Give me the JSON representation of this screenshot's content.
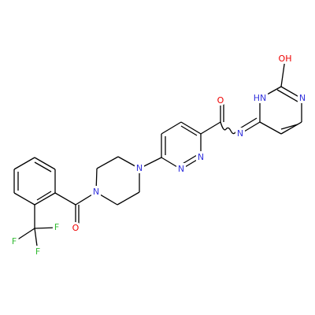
{
  "atoms": [
    {
      "label": "OH"
    },
    {
      "label": "HN"
    },
    {
      "label": "N"
    },
    {
      "label": "N"
    },
    {
      "label": "O"
    },
    {
      "label": "N"
    },
    {
      "label": "N"
    },
    {
      "label": "N"
    },
    {
      "label": "N"
    },
    {
      "label": "O"
    },
    {
      "label": "F"
    },
    {
      "label": "F"
    },
    {
      "label": "F"
    }
  ]
}
